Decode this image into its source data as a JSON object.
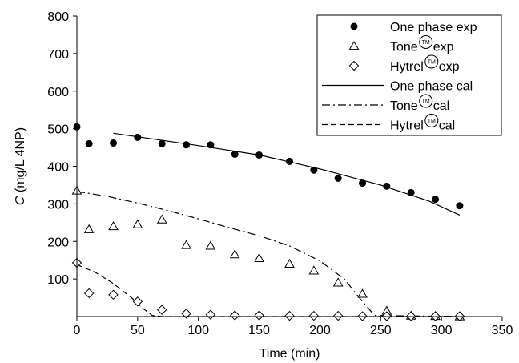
{
  "chart_data": {
    "type": "scatter",
    "xlabel": "Time (min)",
    "ylabel": {
      "italic": "C",
      "rest": " (mg/L 4NP)"
    },
    "xlim": [
      0,
      350
    ],
    "ylim": [
      0,
      800
    ],
    "xticks": [
      0,
      50,
      100,
      150,
      200,
      250,
      300,
      350
    ],
    "yticks": [
      100,
      200,
      300,
      400,
      500,
      600,
      700,
      800
    ],
    "grid": false,
    "legend_position": "top-right",
    "tm_mark": "TM",
    "series": [
      {
        "name": "One phase exp",
        "legend_text": "One  phase exp",
        "kind": "points",
        "marker": "filled-circle",
        "points": [
          [
            0,
            505
          ],
          [
            10,
            460
          ],
          [
            30,
            462
          ],
          [
            50,
            477
          ],
          [
            70,
            460
          ],
          [
            90,
            457
          ],
          [
            110,
            457
          ],
          [
            130,
            432
          ],
          [
            150,
            430
          ],
          [
            175,
            413
          ],
          [
            195,
            390
          ],
          [
            215,
            368
          ],
          [
            235,
            355
          ],
          [
            255,
            347
          ],
          [
            275,
            330
          ],
          [
            295,
            312
          ],
          [
            315,
            295
          ]
        ]
      },
      {
        "name": "Tone exp",
        "legend_text": "Tone",
        "legend_suffix": "exp",
        "tm": true,
        "kind": "points",
        "marker": "open-triangle",
        "points": [
          [
            0,
            335
          ],
          [
            10,
            232
          ],
          [
            30,
            240
          ],
          [
            50,
            245
          ],
          [
            70,
            258
          ],
          [
            90,
            190
          ],
          [
            110,
            188
          ],
          [
            130,
            165
          ],
          [
            150,
            155
          ],
          [
            175,
            140
          ],
          [
            195,
            122
          ],
          [
            215,
            90
          ],
          [
            235,
            60
          ],
          [
            255,
            15
          ],
          [
            275,
            2
          ],
          [
            295,
            1
          ],
          [
            315,
            0
          ]
        ]
      },
      {
        "name": "Hytrel exp",
        "legend_text": "Hytrel",
        "legend_suffix": "exp",
        "tm": true,
        "kind": "points",
        "marker": "open-diamond",
        "points": [
          [
            0,
            143
          ],
          [
            10,
            62
          ],
          [
            30,
            58
          ],
          [
            50,
            40
          ],
          [
            70,
            18
          ],
          [
            90,
            8
          ],
          [
            110,
            5
          ],
          [
            130,
            3
          ],
          [
            150,
            3
          ],
          [
            175,
            2
          ],
          [
            195,
            2
          ],
          [
            215,
            2
          ],
          [
            235,
            1
          ],
          [
            255,
            1
          ],
          [
            275,
            1
          ],
          [
            295,
            1
          ],
          [
            315,
            1
          ]
        ]
      },
      {
        "name": "One phase cal",
        "legend_text": "One phase cal",
        "kind": "line",
        "dash": "solid",
        "points": [
          [
            30,
            488
          ],
          [
            100,
            455
          ],
          [
            150,
            430
          ],
          [
            200,
            393
          ],
          [
            250,
            350
          ],
          [
            290,
            307
          ],
          [
            315,
            270
          ]
        ]
      },
      {
        "name": "Tone cal",
        "legend_text": "Tone",
        "legend_suffix": "cal",
        "tm": true,
        "kind": "line",
        "dash": "dash-dot",
        "points": [
          [
            0,
            333
          ],
          [
            25,
            320
          ],
          [
            50,
            302
          ],
          [
            75,
            282
          ],
          [
            100,
            260
          ],
          [
            125,
            237
          ],
          [
            150,
            215
          ],
          [
            175,
            188
          ],
          [
            200,
            148
          ],
          [
            220,
            100
          ],
          [
            235,
            40
          ],
          [
            245,
            3
          ],
          [
            320,
            0
          ]
        ]
      },
      {
        "name": "Hytrel cal",
        "legend_text": "Hytrel",
        "legend_suffix": "cal",
        "tm": true,
        "kind": "line",
        "dash": "dashed",
        "points": [
          [
            0,
            138
          ],
          [
            15,
            118
          ],
          [
            30,
            88
          ],
          [
            45,
            50
          ],
          [
            55,
            20
          ],
          [
            62,
            3
          ],
          [
            70,
            0
          ],
          [
            320,
            0
          ]
        ]
      }
    ]
  }
}
